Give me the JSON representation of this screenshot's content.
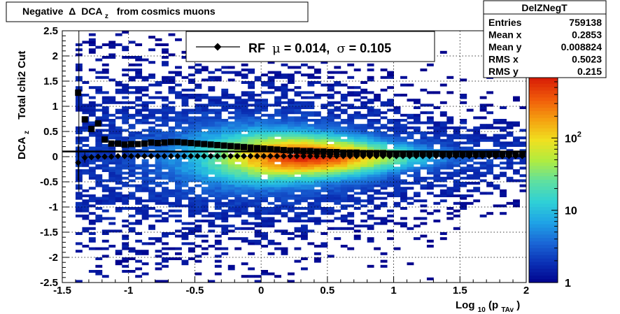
{
  "title": {
    "prefix": "Negative",
    "delta": "Δ",
    "dca": "DCA",
    "sub": "z",
    "suffix": "from cosmics muons"
  },
  "stats": {
    "name": "DelZNegT",
    "rows": [
      {
        "label": "Entries",
        "value": "759138"
      },
      {
        "label": "Mean x",
        "value": "0.2853"
      },
      {
        "label": "Mean y",
        "value": "0.008824"
      },
      {
        "label": "RMS x",
        "value": "0.5023"
      },
      {
        "label": "RMS y",
        "value": "0.215"
      }
    ]
  },
  "legend": {
    "rf": "RF",
    "mu_sym": "μ",
    "mu_text": " =  0.014,",
    "sigma_sym": "σ",
    "sigma_text": " =   0.105"
  },
  "axes": {
    "x_label_main": "Log",
    "x_label_sub1": "10",
    "x_label_mid": "(p",
    "x_label_sub2": "TAv",
    "x_label_end": ")",
    "y_label_main": "DCA",
    "y_label_sub": "z",
    "y_label_extra": "Total chi2 Cut"
  },
  "colors": {
    "frame": "#000000",
    "grid": "#000000",
    "marker": "#000000",
    "palette": [
      "#00008b",
      "#0a2fb4",
      "#1a66d6",
      "#1fa3e6",
      "#2fd0d6",
      "#5fe0a0",
      "#b0ec40",
      "#f0e020",
      "#f5a010",
      "#f05a0a",
      "#d81e06"
    ]
  },
  "chart_data": {
    "type": "heatmap",
    "x_range": [
      -1.5,
      2
    ],
    "y_range": [
      -2.5,
      2.5
    ],
    "x_ticks": [
      "-1.5",
      "-1",
      "-0.5",
      "0",
      "0.5",
      "1",
      "1.5",
      "2"
    ],
    "y_ticks": [
      "-2.5",
      "-2",
      "-1.5",
      "-1",
      "-0.5",
      "0",
      "0.5",
      "1",
      "1.5",
      "2",
      "2.5"
    ],
    "z_scale": "log",
    "z_range": [
      1,
      700
    ],
    "z_ticks": [
      {
        "value": 1,
        "base": "1",
        "exp": ""
      },
      {
        "value": 10,
        "base": "10",
        "exp": ""
      },
      {
        "value": 100,
        "base": "10",
        "exp": "2"
      }
    ],
    "grid": true,
    "series": [
      {
        "name": "",
        "marker": "square",
        "x": [
          -1.38,
          -1.33,
          -1.28,
          -1.23,
          -1.18,
          -1.13,
          -1.08,
          -1.03,
          -0.98,
          -0.93,
          -0.88,
          -0.83,
          -0.78,
          -0.73,
          -0.68,
          -0.63,
          -0.58,
          -0.53,
          -0.48,
          -0.43,
          -0.38,
          -0.33,
          -0.28,
          -0.23,
          -0.18,
          -0.13,
          -0.08,
          -0.03,
          0.02,
          0.07,
          0.12,
          0.17,
          0.22,
          0.27,
          0.32,
          0.37,
          0.42,
          0.47,
          0.52,
          0.57,
          0.62,
          0.67,
          0.72,
          0.77,
          0.82,
          0.87,
          0.92,
          0.97,
          1.02,
          1.07,
          1.12,
          1.17,
          1.22,
          1.27,
          1.32,
          1.37,
          1.42,
          1.47,
          1.52,
          1.57,
          1.62,
          1.67,
          1.72,
          1.77,
          1.82,
          1.87,
          1.92,
          1.97
        ],
        "y": [
          1.27,
          0.74,
          0.55,
          0.66,
          0.34,
          0.26,
          0.26,
          0.24,
          0.25,
          0.25,
          0.26,
          0.28,
          0.27,
          0.28,
          0.29,
          0.29,
          0.28,
          0.27,
          0.26,
          0.25,
          0.24,
          0.23,
          0.22,
          0.21,
          0.2,
          0.19,
          0.18,
          0.17,
          0.16,
          0.15,
          0.14,
          0.13,
          0.12,
          0.12,
          0.11,
          0.11,
          0.1,
          0.1,
          0.09,
          0.09,
          0.08,
          0.08,
          0.08,
          0.07,
          0.07,
          0.07,
          0.07,
          0.06,
          0.06,
          0.06,
          0.06,
          0.06,
          0.06,
          0.06,
          0.06,
          0.05,
          0.05,
          0.05,
          0.05,
          0.05,
          0.05,
          0.05,
          0.05,
          0.05,
          0.05,
          0.05,
          0.05,
          0.05
        ]
      },
      {
        "name": "RF",
        "marker": "diamond",
        "x": [
          -1.38,
          -1.33,
          -1.28,
          -1.23,
          -1.18,
          -1.13,
          -1.08,
          -1.03,
          -0.98,
          -0.93,
          -0.88,
          -0.83,
          -0.78,
          -0.73,
          -0.68,
          -0.63,
          -0.58,
          -0.53,
          -0.48,
          -0.43,
          -0.38,
          -0.33,
          -0.28,
          -0.23,
          -0.18,
          -0.13,
          -0.08,
          -0.03,
          0.02,
          0.07,
          0.12,
          0.17,
          0.22,
          0.27,
          0.32,
          0.37,
          0.42,
          0.47,
          0.52,
          0.57,
          0.62,
          0.67,
          0.72,
          0.77,
          0.82,
          0.87,
          0.92,
          0.97,
          1.02,
          1.07,
          1.12,
          1.17,
          1.22,
          1.27,
          1.32,
          1.37,
          1.42,
          1.47,
          1.52,
          1.57,
          1.62,
          1.67,
          1.72,
          1.77,
          1.82,
          1.87,
          1.92,
          1.97
        ],
        "y": [
          -0.12,
          -0.02,
          -0.01,
          0.0,
          0.0,
          0.0,
          0.01,
          0.01,
          0.01,
          0.01,
          0.01,
          0.01,
          0.01,
          0.01,
          0.01,
          0.01,
          0.01,
          0.01,
          0.01,
          0.01,
          0.01,
          0.01,
          0.01,
          0.01,
          0.01,
          0.01,
          0.01,
          0.01,
          0.01,
          0.01,
          0.01,
          0.01,
          0.01,
          0.01,
          0.01,
          0.01,
          0.01,
          0.01,
          0.01,
          0.01,
          0.01,
          0.01,
          0.01,
          0.01,
          0.01,
          0.01,
          0.01,
          0.01,
          0.01,
          0.01,
          0.01,
          0.01,
          0.01,
          0.01,
          0.01,
          0.01,
          0.01,
          0.01,
          0.01,
          0.01,
          0.01,
          0.01,
          0.01,
          0.01,
          0.01,
          0.01,
          0.01,
          0.01
        ],
        "y_err": [
          0.35,
          0.1,
          0.05,
          0.03,
          0.02,
          0.01,
          0.01,
          0.01,
          0.01,
          0.01,
          0.01,
          0.01,
          0.01,
          0.01,
          0.01,
          0.01,
          0.01,
          0.01,
          0.01,
          0.01,
          0.01,
          0.01,
          0.01,
          0.01,
          0.01,
          0.01,
          0.01,
          0.01,
          0.01,
          0.01,
          0.01,
          0.01,
          0.01,
          0.01,
          0.01,
          0.01,
          0.01,
          0.01,
          0.01,
          0.01,
          0.01,
          0.01,
          0.01,
          0.01,
          0.01,
          0.01,
          0.01,
          0.01,
          0.01,
          0.01,
          0.01,
          0.01,
          0.01,
          0.01,
          0.01,
          0.01,
          0.01,
          0.01,
          0.01,
          0.01,
          0.01,
          0.01,
          0.01,
          0.01,
          0.01,
          0.01,
          0.01,
          0.01
        ]
      }
    ]
  }
}
